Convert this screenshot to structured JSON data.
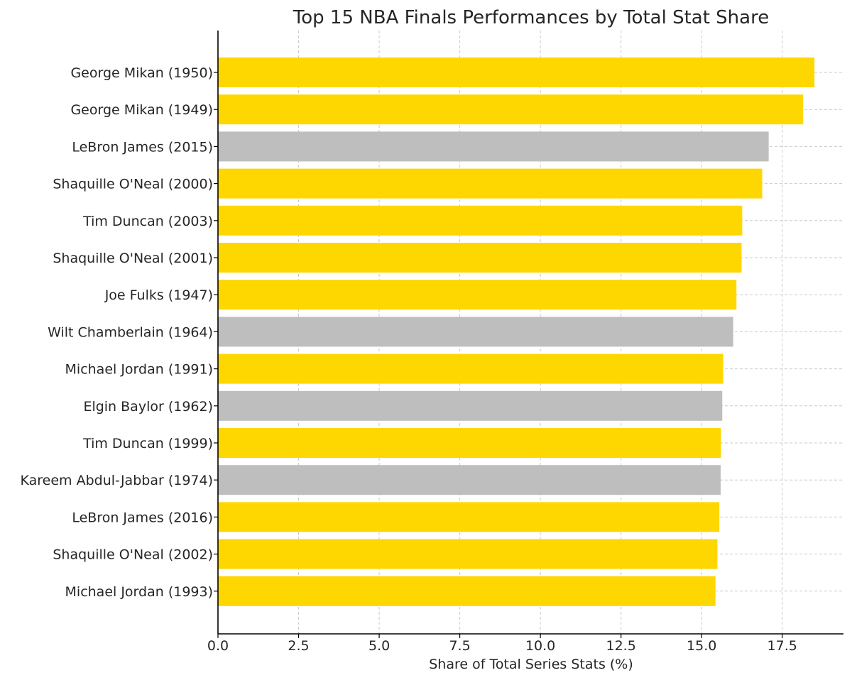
{
  "chart_data": {
    "type": "bar",
    "orientation": "horizontal",
    "title": "Top 15 NBA Finals Performances by Total Stat Share",
    "xlabel": "Share of Total Series Stats (%)",
    "ylabel": "",
    "xlim": [
      0,
      19.4
    ],
    "xticks": [
      "0.0",
      "2.5",
      "5.0",
      "7.5",
      "10.0",
      "12.5",
      "15.0",
      "17.5"
    ],
    "xtick_values": [
      0,
      2.5,
      5,
      7.5,
      10,
      12.5,
      15,
      17.5
    ],
    "grid": true,
    "categories": [
      "George Mikan (1950)",
      "George Mikan (1949)",
      "LeBron James (2015)",
      "Shaquille O'Neal (2000)",
      "Tim Duncan (2003)",
      "Shaquille O'Neal (2001)",
      "Joe Fulks (1947)",
      "Wilt Chamberlain (1964)",
      "Michael Jordan (1991)",
      "Elgin Baylor (1962)",
      "Tim Duncan (1999)",
      "Kareem Abdul-Jabbar (1974)",
      "LeBron James (2016)",
      "Shaquille O'Neal (2002)",
      "Michael Jordan (1993)"
    ],
    "values": [
      18.5,
      18.15,
      17.08,
      16.88,
      16.26,
      16.24,
      16.08,
      15.98,
      15.67,
      15.64,
      15.6,
      15.59,
      15.55,
      15.49,
      15.43
    ],
    "bar_color_keys": [
      "gold",
      "gold",
      "gray",
      "gold",
      "gold",
      "gold",
      "gold",
      "gray",
      "gold",
      "gray",
      "gold",
      "gray",
      "gold",
      "gold",
      "gold"
    ],
    "colors": {
      "gold": "#FFD700",
      "gray": "#BEBEBE"
    }
  }
}
